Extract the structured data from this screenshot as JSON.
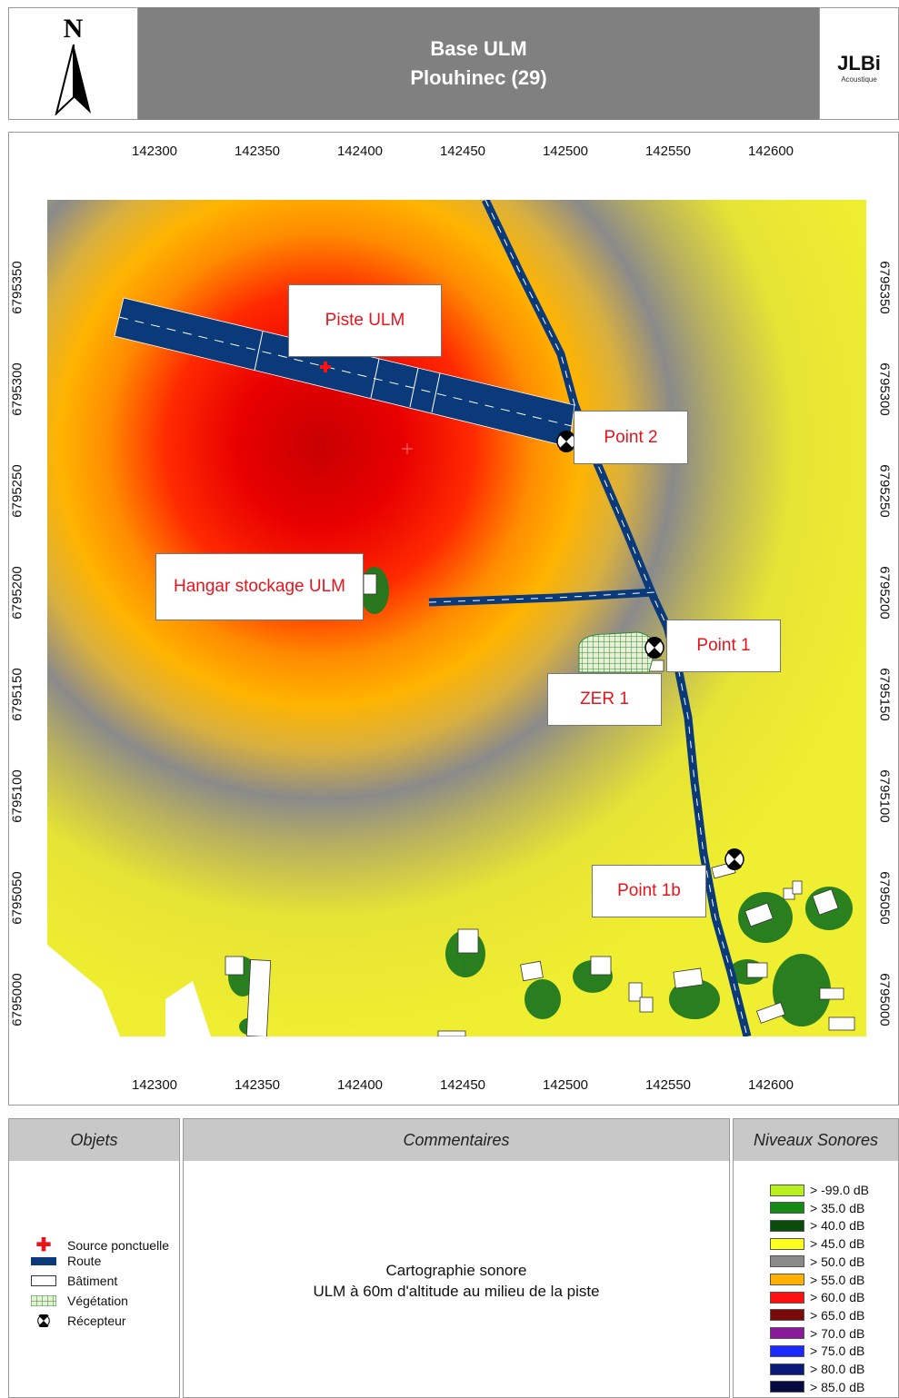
{
  "header": {
    "title_line1": "Base ULM",
    "title_line2": "Plouhinec (29)",
    "north_label": "N",
    "logo_text": "JLBi",
    "logo_sub": "Acoustique"
  },
  "map": {
    "x_ticks": [
      "142300",
      "142350",
      "142400",
      "142450",
      "142500",
      "142550",
      "142600"
    ],
    "y_ticks": [
      "6795350",
      "6795300",
      "6795250",
      "6795200",
      "6795150",
      "6795100",
      "6795050",
      "6795000"
    ],
    "callouts": {
      "piste": "Piste ULM",
      "point2": "Point 2",
      "hangar": "Hangar stockage ULM",
      "point1": "Point 1",
      "zer1": "ZER 1",
      "point1b": "Point 1b"
    },
    "colors": {
      "hot": "#d80000",
      "road": "#0a3a7a",
      "grey": "#8a8a8a",
      "yellow": "#f0ee2a",
      "orange": "#ffb000"
    }
  },
  "legend": {
    "objects_header": "Objets",
    "comments_header": "Commentaires",
    "levels_header": "Niveaux Sonores",
    "objects": [
      {
        "label": "Source ponctuelle",
        "icon": "red-cross-icon"
      },
      {
        "label": "Route",
        "icon": "road-swatch-icon"
      },
      {
        "label": "Bâtiment",
        "icon": "building-swatch-icon"
      },
      {
        "label": "Végétation",
        "icon": "vegetation-swatch-icon"
      },
      {
        "label": "Récepteur",
        "icon": "receiver-icon"
      }
    ],
    "comment_line1": "Cartographie sonore",
    "comment_line2": "ULM à 60m d'altitude au milieu de la piste",
    "levels": [
      {
        "label": ">  -99.0 dB",
        "color": "#b8f020"
      },
      {
        "label": ">  35.0 dB",
        "color": "#168a16"
      },
      {
        "label": ">  40.0 dB",
        "color": "#0a4a0a"
      },
      {
        "label": ">  45.0 dB",
        "color": "#ffff20"
      },
      {
        "label": ">  50.0 dB",
        "color": "#8a8a8a"
      },
      {
        "label": ">  55.0 dB",
        "color": "#ffb000"
      },
      {
        "label": ">  60.0 dB",
        "color": "#ff1010"
      },
      {
        "label": ">  65.0 dB",
        "color": "#7a0a0a"
      },
      {
        "label": ">  70.0 dB",
        "color": "#8a1a9a"
      },
      {
        "label": ">  75.0 dB",
        "color": "#1a2aff"
      },
      {
        "label": ">  80.0 dB",
        "color": "#0a1a7a"
      },
      {
        "label": ">  85.0 dB",
        "color": "#050a40"
      }
    ]
  }
}
